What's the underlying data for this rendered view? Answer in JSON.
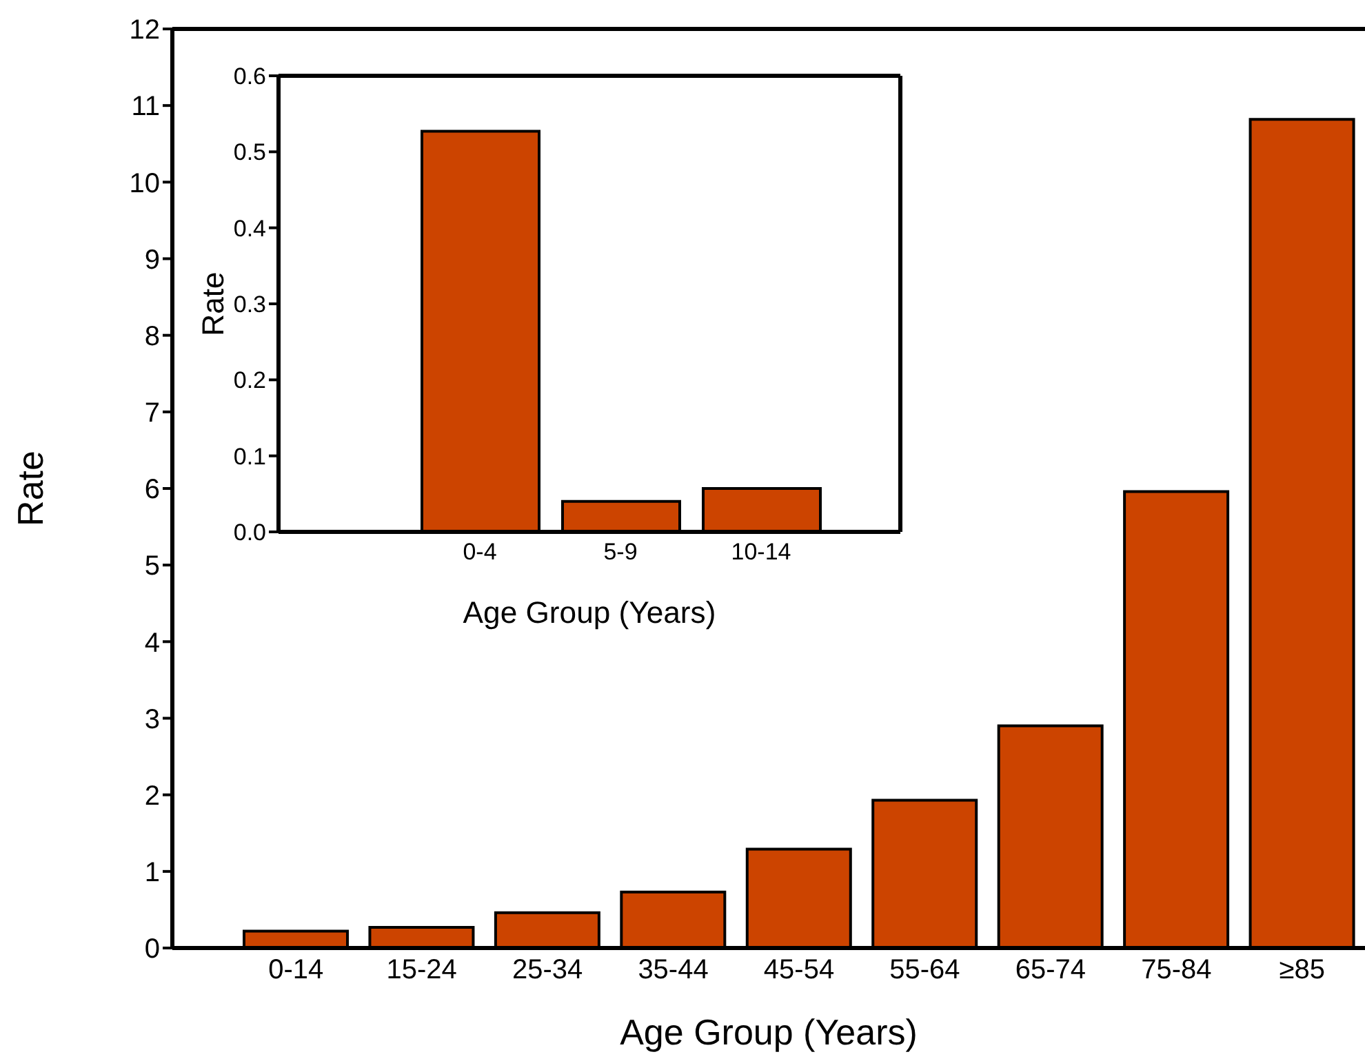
{
  "chart_data": [
    {
      "type": "bar",
      "xlabel": "Age Group (Years)",
      "ylabel": "Rate",
      "categories": [
        "0-14",
        "15-24",
        "25-34",
        "35-44",
        "45-54",
        "55-64",
        "65-74",
        "75-84",
        "≥85"
      ],
      "values": [
        0.22,
        0.27,
        0.46,
        0.73,
        1.29,
        1.93,
        2.9,
        5.96,
        10.82
      ],
      "color": "#cc4400",
      "ylim": [
        0,
        12
      ],
      "yticks": [
        0,
        1,
        2,
        3,
        4,
        5,
        6,
        7,
        8,
        9,
        10,
        11,
        12
      ]
    },
    {
      "type": "bar",
      "xlabel": "Age Group (Years)",
      "ylabel": "Rate",
      "categories": [
        "0-4",
        "5-9",
        "10-14"
      ],
      "values": [
        0.527,
        0.04,
        0.057
      ],
      "color": "#cc4400",
      "ylim": [
        0,
        0.6
      ],
      "yticks": [
        {
          "value": 0,
          "label": "0.0"
        },
        {
          "value": 0.1,
          "label": "0.1"
        },
        {
          "value": 0.2,
          "label": "0.2"
        },
        {
          "value": 0.3,
          "label": "0.3"
        },
        {
          "value": 0.4,
          "label": "0.4"
        },
        {
          "value": 0.5,
          "label": "0.5"
        },
        {
          "value": 0.6,
          "label": "0.6"
        }
      ]
    }
  ]
}
